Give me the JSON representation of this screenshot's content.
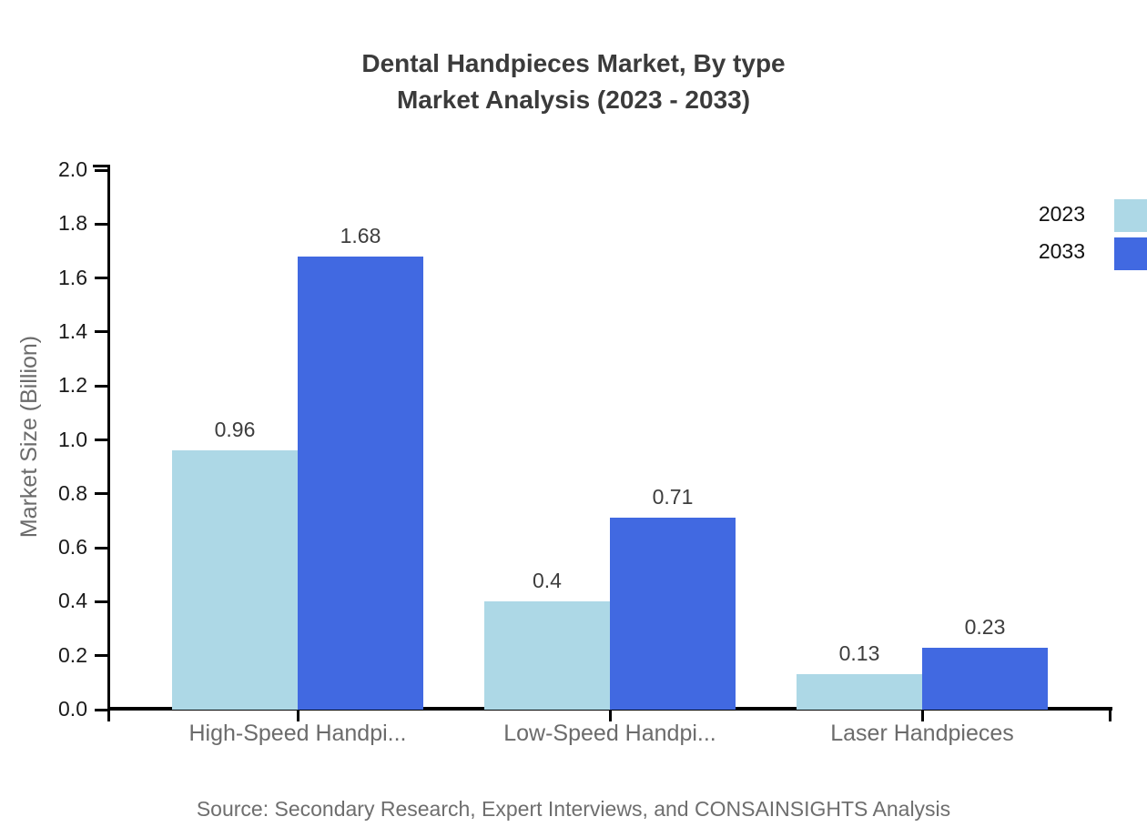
{
  "title": {
    "line1": "Dental Handpieces Market, By type",
    "line2": "Market Analysis (2023 - 2033)"
  },
  "source": "Source: Secondary Research, Expert Interviews, and CONSAINSIGHTS Analysis",
  "legend": [
    {
      "label": "2023",
      "color": "#ADD8E6"
    },
    {
      "label": "2033",
      "color": "#4169E1"
    }
  ],
  "chart_data": {
    "type": "bar",
    "title": "Dental Handpieces Market, By type Market Analysis (2023 - 2033)",
    "categories": [
      "High-Speed Handpi...",
      "Low-Speed Handpi...",
      "Laser Handpieces"
    ],
    "series": [
      {
        "name": "2023",
        "color": "#ADD8E6",
        "values": [
          0.96,
          0.4,
          0.13
        ]
      },
      {
        "name": "2033",
        "color": "#4169E1",
        "values": [
          1.68,
          0.71,
          0.23
        ]
      }
    ],
    "xlabel": "",
    "ylabel": "Market Size (Billion)",
    "ylim": [
      0,
      2.0
    ],
    "ytick_step": 0.2,
    "grid": false,
    "legend_position": "top-right",
    "value_labels_shown": true
  }
}
